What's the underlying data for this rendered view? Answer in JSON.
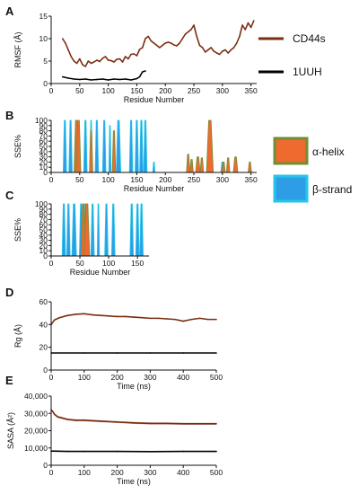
{
  "legend": {
    "lines": [
      {
        "label": "CD44s",
        "color": "#7a2e12"
      },
      {
        "label": "1UUH",
        "color": "#000000"
      }
    ],
    "sse": [
      {
        "label": "α-helix",
        "color": "#ee6a2f",
        "edge": "#6f8f35"
      },
      {
        "label": "β-strand",
        "color": "#2d9ee6",
        "edge": "#26c6ea"
      }
    ]
  },
  "panels": {
    "A": "A",
    "B": "B",
    "C": "C",
    "D": "D",
    "E": "E"
  },
  "chart_data": [
    {
      "id": "A",
      "type": "line",
      "xlabel": "Residue Number",
      "ylabel": "RMSF (Å)",
      "xlim": [
        0,
        360
      ],
      "ylim": [
        0,
        15
      ],
      "xticks": [
        0,
        50,
        100,
        150,
        200,
        250,
        300,
        350
      ],
      "yticks": [
        0,
        5,
        10,
        15
      ],
      "series": [
        {
          "name": "CD44s",
          "color": "#7a2e12",
          "x": [
            20,
            25,
            30,
            35,
            40,
            45,
            50,
            55,
            60,
            65,
            70,
            75,
            80,
            85,
            90,
            95,
            100,
            105,
            110,
            115,
            120,
            125,
            130,
            135,
            140,
            145,
            150,
            155,
            160,
            165,
            170,
            175,
            180,
            185,
            190,
            195,
            200,
            205,
            210,
            215,
            220,
            225,
            230,
            235,
            240,
            245,
            250,
            255,
            260,
            265,
            270,
            275,
            280,
            285,
            290,
            295,
            300,
            305,
            310,
            315,
            320,
            325,
            330,
            335,
            340,
            345,
            350,
            355
          ],
          "y": [
            10,
            9,
            7.5,
            6,
            5,
            4.5,
            5.5,
            4.2,
            3.8,
            5,
            4.5,
            4.8,
            5.2,
            4.9,
            5.6,
            6,
            5.2,
            5.1,
            4.8,
            5.4,
            5.5,
            4.8,
            6,
            5.5,
            6.5,
            6.6,
            6.2,
            7.6,
            8,
            10,
            10.5,
            9.5,
            9,
            8.5,
            8,
            8.5,
            9,
            9.2,
            9,
            8.6,
            8.4,
            9,
            10,
            11,
            11.5,
            12,
            13,
            10.5,
            8.5,
            8,
            7,
            7.5,
            8,
            7.2,
            6.8,
            6.5,
            7.2,
            7.5,
            6.8,
            7.5,
            8,
            9,
            10.5,
            13,
            12,
            13.5,
            12.5,
            14
          ]
        },
        {
          "name": "1UUH",
          "color": "#000000",
          "x": [
            20,
            30,
            40,
            50,
            60,
            70,
            80,
            90,
            100,
            110,
            120,
            130,
            140,
            150,
            155,
            160,
            165
          ],
          "y": [
            1.5,
            1.2,
            1.0,
            0.9,
            1.0,
            0.8,
            0.9,
            1.0,
            0.8,
            1.0,
            0.9,
            1.0,
            0.8,
            1.1,
            1.5,
            2.6,
            2.8
          ]
        }
      ]
    },
    {
      "id": "B",
      "type": "area",
      "xlabel": "Residue Number",
      "ylabel": "SSE%",
      "xlim": [
        0,
        360
      ],
      "ylim": [
        0,
        100
      ],
      "xticks": [
        0,
        50,
        100,
        150,
        200,
        250,
        300,
        350
      ],
      "yticks": [
        0,
        10,
        20,
        30,
        40,
        50,
        60,
        70,
        80,
        90,
        100
      ],
      "strand_peaks": [
        [
          24,
          3,
          100
        ],
        [
          34,
          3,
          100
        ],
        [
          60,
          3,
          100
        ],
        [
          70,
          2,
          100
        ],
        [
          80,
          3,
          100
        ],
        [
          93,
          3,
          100
        ],
        [
          103,
          2,
          90
        ],
        [
          118,
          4,
          100
        ],
        [
          140,
          3,
          100
        ],
        [
          150,
          3,
          100
        ],
        [
          158,
          3,
          100
        ],
        [
          165,
          3,
          100
        ],
        [
          180,
          2,
          20
        ],
        [
          300,
          3,
          20
        ]
      ],
      "helix_peaks": [
        [
          44,
          4,
          100
        ],
        [
          48,
          4,
          100
        ],
        [
          70,
          3,
          80
        ],
        [
          110,
          3,
          80
        ],
        [
          240,
          3,
          35
        ],
        [
          246,
          3,
          25
        ],
        [
          257,
          4,
          30
        ],
        [
          264,
          3,
          28
        ],
        [
          278,
          6,
          100
        ],
        [
          302,
          3,
          20
        ],
        [
          310,
          3,
          28
        ],
        [
          323,
          4,
          30
        ],
        [
          348,
          3,
          20
        ]
      ]
    },
    {
      "id": "C",
      "type": "area",
      "xlabel": "Residue Number",
      "ylabel": "SSE%",
      "xlim": [
        0,
        170
      ],
      "ylim": [
        0,
        100
      ],
      "xticks": [
        0,
        50,
        100,
        150
      ],
      "yticks": [
        0,
        10,
        20,
        30,
        40,
        50,
        60,
        70,
        80,
        90,
        100
      ],
      "strand_peaks": [
        [
          22,
          3,
          100
        ],
        [
          30,
          3,
          100
        ],
        [
          40,
          4,
          100
        ],
        [
          52,
          3,
          100
        ],
        [
          60,
          3,
          100
        ],
        [
          72,
          3,
          100
        ],
        [
          82,
          2,
          100
        ],
        [
          96,
          3,
          100
        ],
        [
          108,
          3,
          100
        ],
        [
          140,
          3,
          100
        ],
        [
          150,
          3,
          100
        ],
        [
          157,
          3,
          100
        ]
      ],
      "helix_peaks": [
        [
          56,
          4,
          100
        ],
        [
          62,
          5,
          100
        ]
      ]
    },
    {
      "id": "D",
      "type": "line",
      "xlabel": "Time (ns)",
      "ylabel": "Rg (Å)",
      "xlim": [
        0,
        500
      ],
      "ylim": [
        0,
        60
      ],
      "xticks": [
        0,
        100,
        200,
        300,
        400,
        500
      ],
      "yticks": [
        0,
        20,
        40,
        60
      ],
      "series": [
        {
          "name": "CD44s",
          "color": "#7a2e12",
          "x": [
            0,
            10,
            25,
            50,
            75,
            100,
            125,
            150,
            175,
            200,
            225,
            250,
            275,
            300,
            325,
            350,
            375,
            400,
            425,
            450,
            475,
            500
          ],
          "y": [
            40,
            44,
            46,
            48,
            49,
            49.5,
            48.5,
            48,
            47.5,
            47,
            47,
            46.5,
            46,
            45.5,
            45.5,
            45,
            44.5,
            43,
            44.5,
            45.5,
            44.5,
            44.5
          ]
        },
        {
          "name": "1UUH",
          "color": "#000000",
          "x": [
            0,
            100,
            200,
            300,
            400,
            500
          ],
          "y": [
            15,
            15,
            15,
            15,
            15,
            15
          ]
        }
      ]
    },
    {
      "id": "E",
      "type": "line",
      "xlabel": "Time (ns)",
      "ylabel": "SASA (Å²)",
      "xlim": [
        0,
        500
      ],
      "ylim": [
        0,
        40000
      ],
      "xticks": [
        0,
        100,
        200,
        300,
        400,
        500
      ],
      "yticks": [
        0,
        10000,
        20000,
        30000,
        40000
      ],
      "ytick_labels": [
        "0",
        "10,000",
        "20,000",
        "30,000",
        "40,000"
      ],
      "series": [
        {
          "name": "CD44s",
          "color": "#7a2e12",
          "x": [
            0,
            5,
            10,
            20,
            30,
            50,
            75,
            100,
            150,
            200,
            250,
            300,
            350,
            400,
            450,
            500
          ],
          "y": [
            32000,
            31000,
            29500,
            28000,
            27500,
            26500,
            26000,
            26000,
            25500,
            25000,
            24500,
            24200,
            24200,
            24000,
            24000,
            24000
          ],
          "band": 1200
        },
        {
          "name": "1UUH",
          "color": "#000000",
          "x": [
            0,
            50,
            100,
            200,
            300,
            400,
            500
          ],
          "y": [
            8200,
            8000,
            8000,
            8000,
            7900,
            8000,
            8000
          ],
          "band": 300
        }
      ]
    }
  ]
}
